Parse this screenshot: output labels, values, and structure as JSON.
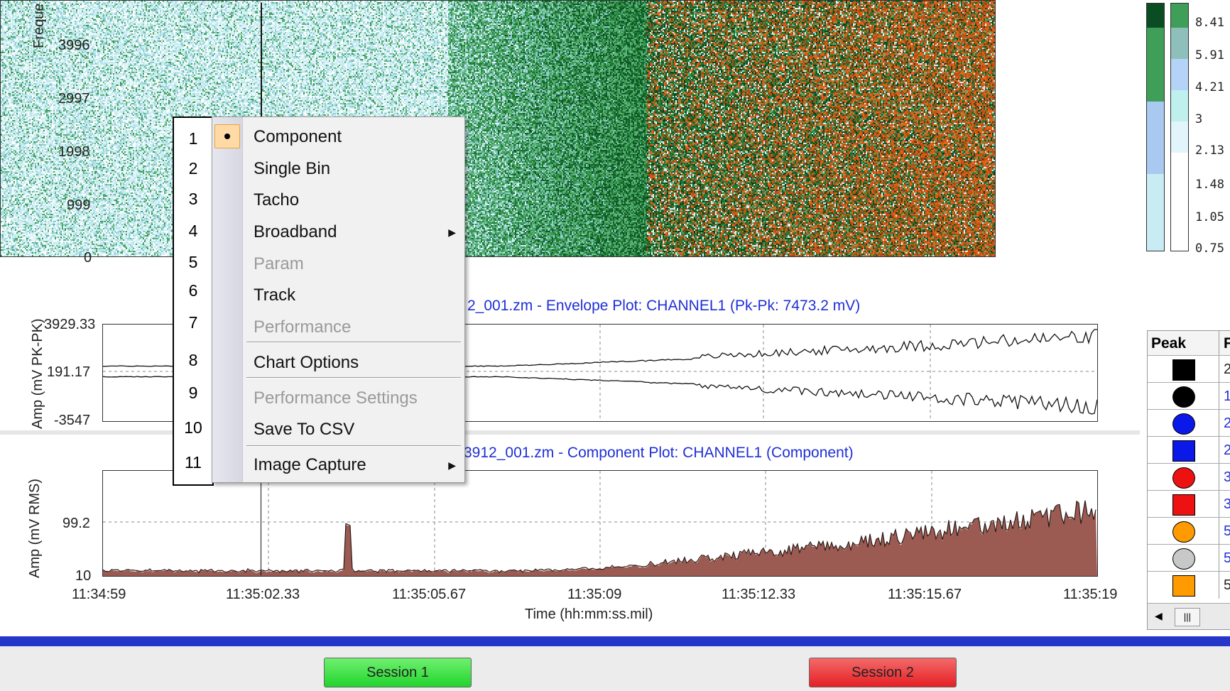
{
  "heatmap": {
    "ylabel": "Freque",
    "yticks": [
      "3996",
      "2997",
      "1998",
      "999",
      "0"
    ]
  },
  "color_scale": {
    "labels": [
      "8.41",
      "5.91",
      "4.21",
      "3",
      "2.13",
      "1.48",
      "1.05",
      "0.75"
    ]
  },
  "envelope_plot": {
    "title": "2_001.zm  - Envelope Plot:  CHANNEL1 (Pk-Pk: 7473.2 mV)",
    "ylabel": "Amp (mV PK-PK)",
    "yticks": [
      "3929.33",
      "191.17",
      "-3547"
    ]
  },
  "component_plot": {
    "title": "3912_001.zm - Component Plot: CHANNEL1 (Component)",
    "ylabel": "Amp (mV RMS)",
    "yticks": [
      "99.2",
      "10"
    ],
    "xticks": [
      "11:34:59",
      "11:35:02.33",
      "11:35:05.67",
      "11:35:09",
      "11:35:12.33",
      "11:35:15.67",
      "11:35:19"
    ],
    "xlabel": "Time (hh:mm:ss.mil)"
  },
  "peak_table": {
    "header": "Peak",
    "header2": "F",
    "values": [
      "2",
      "1",
      "2",
      "2",
      "3",
      "3",
      "5",
      "5",
      "5"
    ],
    "scroll_glyph": "|||"
  },
  "context_menu": {
    "items": [
      {
        "label": "Component",
        "disabled": false,
        "selected": true
      },
      {
        "label": "Single Bin",
        "disabled": false
      },
      {
        "label": "Tacho",
        "disabled": false
      },
      {
        "label": "Broadband",
        "disabled": false,
        "submenu": true
      },
      {
        "label": "Param",
        "disabled": true
      },
      {
        "label": "Track",
        "disabled": false
      },
      {
        "label": "Performance",
        "disabled": true
      },
      {
        "label": "Chart Options",
        "disabled": false
      },
      {
        "label": "Performance Settings",
        "disabled": true
      },
      {
        "label": "Save To CSV",
        "disabled": false
      },
      {
        "label": "Image Capture",
        "disabled": false,
        "submenu": true
      }
    ]
  },
  "annotation_numbers": [
    "1",
    "2",
    "3",
    "4",
    "5",
    "6",
    "7",
    "8",
    "9",
    "10",
    "11"
  ],
  "sessions": {
    "session1": "Session 1",
    "session2": "Session 2"
  },
  "colors": {
    "accent_blue": "#1f2fd6",
    "bar_blue": "#2437c9",
    "session1_green": "#2edc3a",
    "session2_red": "#e8262b"
  }
}
